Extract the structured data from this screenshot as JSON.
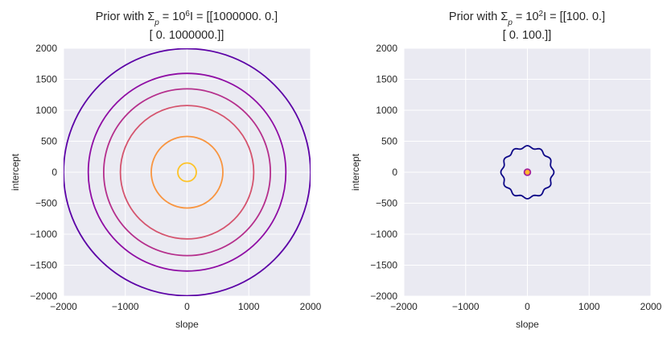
{
  "chart_data": [
    {
      "type": "contour",
      "title_line1": "Prior with Σ",
      "title_sub": "p",
      "title_mid": " = 10",
      "title_sup": "6",
      "title_end": "I =  [[1000000.       0.]",
      "title_line2": "[      0. 1000000.]]",
      "xlabel": "slope",
      "ylabel": "intercept",
      "xlim": [
        -2000,
        2000
      ],
      "ylim": [
        -2000,
        2000
      ],
      "xticks": [
        "−2000",
        "−1000",
        "0",
        "1000",
        "2000"
      ],
      "yticks": [
        "2000",
        "1500",
        "1000",
        "500",
        "0",
        "−500",
        "−1000",
        "−1500",
        "−2000"
      ],
      "grid": true,
      "colormap": "plasma",
      "contours": [
        {
          "radius": 2000,
          "color": "#5c01a6"
        },
        {
          "radius": 1600,
          "color": "#8f0da4"
        },
        {
          "radius": 1350,
          "color": "#b52f8c"
        },
        {
          "radius": 1080,
          "color": "#d5546e"
        },
        {
          "radius": 580,
          "color": "#f89540"
        },
        {
          "radius": 150,
          "color": "#fdc328"
        }
      ]
    },
    {
      "type": "contour",
      "title_line1": "Prior with Σ",
      "title_sub": "p",
      "title_mid": " = 10",
      "title_sup": "2",
      "title_end": "I =  [[100.   0.]",
      "title_line2": "[  0. 100.]]",
      "xlabel": "slope",
      "ylabel": "intercept",
      "xlim": [
        -2000,
        2000
      ],
      "ylim": [
        -2000,
        2000
      ],
      "xticks": [
        "−2000",
        "−1000",
        "0",
        "1000",
        "2000"
      ],
      "yticks": [
        "2000",
        "1500",
        "1000",
        "500",
        "0",
        "−500",
        "−1000",
        "−1500",
        "−2000"
      ],
      "grid": true,
      "colormap": "plasma",
      "contours": [
        {
          "radius": 410,
          "color": "#0d0887",
          "wobbly": true
        },
        {
          "radius": 50,
          "color": "#9c179e"
        },
        {
          "radius": 30,
          "color": "#f89540"
        },
        {
          "radius": 10,
          "color": "#fdc328"
        }
      ]
    }
  ]
}
